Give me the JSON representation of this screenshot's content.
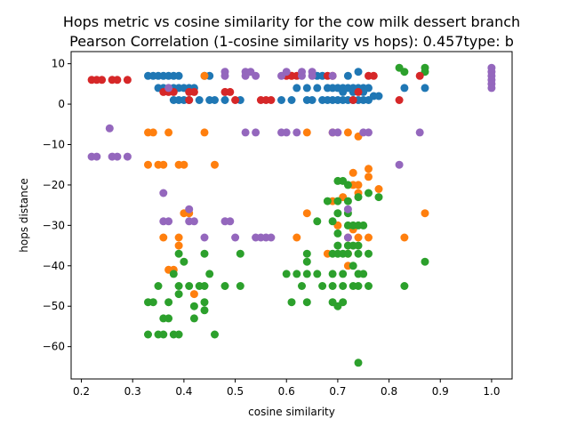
{
  "chart_data": {
    "type": "scatter",
    "title_line1": "Hops metric vs cosine similarity for the cow milk dessert branch",
    "title_line2": "Pearson Correlation (1-cosine similarity vs hops): 0.457type: b",
    "xlabel": "cosine similarity",
    "ylabel": "hops distance",
    "xlim": [
      0.18,
      1.04
    ],
    "ylim": [
      -68,
      13
    ],
    "xticks": [
      0.2,
      0.3,
      0.4,
      0.5,
      0.6,
      0.7,
      0.8,
      0.9,
      1.0
    ],
    "xtick_labels": [
      "0.2",
      "0.3",
      "0.4",
      "0.5",
      "0.6",
      "0.7",
      "0.8",
      "0.9",
      "1.0"
    ],
    "yticks": [
      10,
      0,
      -10,
      -20,
      -30,
      -40,
      -50,
      -60
    ],
    "ytick_labels": [
      "10",
      "0",
      "−10",
      "−20",
      "−30",
      "−40",
      "−50",
      "−60"
    ],
    "grid": false,
    "legend": "none",
    "series": [
      {
        "name": "blue",
        "color": "#1f77b4",
        "points": [
          [
            0.33,
            7
          ],
          [
            0.34,
            7
          ],
          [
            0.35,
            7
          ],
          [
            0.36,
            7
          ],
          [
            0.37,
            7
          ],
          [
            0.38,
            7
          ],
          [
            0.39,
            7
          ],
          [
            0.44,
            7
          ],
          [
            0.45,
            7
          ],
          [
            0.66,
            7
          ],
          [
            0.67,
            7
          ],
          [
            0.72,
            7
          ],
          [
            0.74,
            8
          ],
          [
            0.35,
            4
          ],
          [
            0.36,
            4
          ],
          [
            0.37,
            4
          ],
          [
            0.38,
            4
          ],
          [
            0.39,
            4
          ],
          [
            0.4,
            4
          ],
          [
            0.41,
            4
          ],
          [
            0.42,
            4
          ],
          [
            0.62,
            4
          ],
          [
            0.64,
            4
          ],
          [
            0.66,
            4
          ],
          [
            0.68,
            4
          ],
          [
            0.69,
            4
          ],
          [
            0.7,
            4
          ],
          [
            0.71,
            4
          ],
          [
            0.72,
            4
          ],
          [
            0.73,
            4
          ],
          [
            0.74,
            4
          ],
          [
            0.75,
            4
          ],
          [
            0.76,
            4
          ],
          [
            0.87,
            4
          ],
          [
            0.83,
            4
          ],
          [
            0.71,
            3
          ],
          [
            0.73,
            3
          ],
          [
            0.75,
            3
          ],
          [
            0.77,
            2
          ],
          [
            0.78,
            2
          ],
          [
            0.38,
            1
          ],
          [
            0.39,
            1
          ],
          [
            0.4,
            1
          ],
          [
            0.41,
            1
          ],
          [
            0.43,
            1
          ],
          [
            0.45,
            1
          ],
          [
            0.46,
            1
          ],
          [
            0.48,
            1
          ],
          [
            0.51,
            1
          ],
          [
            0.61,
            1
          ],
          [
            0.64,
            1
          ],
          [
            0.65,
            1
          ],
          [
            0.67,
            1
          ],
          [
            0.68,
            1
          ],
          [
            0.69,
            1
          ],
          [
            0.7,
            1
          ],
          [
            0.71,
            1
          ],
          [
            0.72,
            1
          ],
          [
            0.73,
            1
          ],
          [
            0.74,
            1
          ],
          [
            0.75,
            1
          ],
          [
            0.76,
            1
          ],
          [
            0.59,
            1
          ]
        ]
      },
      {
        "name": "orange",
        "color": "#ff7f0e",
        "points": [
          [
            0.44,
            7
          ],
          [
            0.61,
            7
          ],
          [
            0.33,
            -7
          ],
          [
            0.34,
            -7
          ],
          [
            0.37,
            -7
          ],
          [
            0.44,
            -7
          ],
          [
            0.64,
            -7
          ],
          [
            0.69,
            -7
          ],
          [
            0.72,
            -7
          ],
          [
            0.74,
            -8
          ],
          [
            0.33,
            -15
          ],
          [
            0.35,
            -15
          ],
          [
            0.36,
            -15
          ],
          [
            0.39,
            -15
          ],
          [
            0.4,
            -15
          ],
          [
            0.46,
            -15
          ],
          [
            0.76,
            -16
          ],
          [
            0.76,
            -18
          ],
          [
            0.73,
            -17
          ],
          [
            0.73,
            -20
          ],
          [
            0.74,
            -20
          ],
          [
            0.78,
            -21
          ],
          [
            0.74,
            -22
          ],
          [
            0.71,
            -23
          ],
          [
            0.69,
            -24
          ],
          [
            0.4,
            -27
          ],
          [
            0.41,
            -27
          ],
          [
            0.64,
            -27
          ],
          [
            0.87,
            -27
          ],
          [
            0.7,
            -30
          ],
          [
            0.73,
            -31
          ],
          [
            0.39,
            -33
          ],
          [
            0.39,
            -35
          ],
          [
            0.36,
            -33
          ],
          [
            0.62,
            -33
          ],
          [
            0.72,
            -33
          ],
          [
            0.74,
            -33
          ],
          [
            0.76,
            -33
          ],
          [
            0.83,
            -33
          ],
          [
            0.37,
            -41
          ],
          [
            0.38,
            -41
          ],
          [
            0.42,
            -47
          ],
          [
            0.72,
            -37
          ],
          [
            0.68,
            -37
          ],
          [
            0.72,
            -40
          ]
        ]
      },
      {
        "name": "green",
        "color": "#2ca02c",
        "points": [
          [
            0.82,
            9
          ],
          [
            0.87,
            9
          ],
          [
            0.83,
            8
          ],
          [
            0.87,
            8
          ],
          [
            0.7,
            -19
          ],
          [
            0.71,
            -19
          ],
          [
            0.72,
            -20
          ],
          [
            0.76,
            -22
          ],
          [
            0.78,
            -23
          ],
          [
            0.74,
            -23
          ],
          [
            0.68,
            -24
          ],
          [
            0.7,
            -24
          ],
          [
            0.72,
            -24
          ],
          [
            0.66,
            -29
          ],
          [
            0.69,
            -29
          ],
          [
            0.7,
            -27
          ],
          [
            0.72,
            -27
          ],
          [
            0.7,
            -32
          ],
          [
            0.7,
            -35
          ],
          [
            0.72,
            -30
          ],
          [
            0.73,
            -30
          ],
          [
            0.74,
            -30
          ],
          [
            0.75,
            -30
          ],
          [
            0.69,
            -37
          ],
          [
            0.7,
            -37
          ],
          [
            0.71,
            -37
          ],
          [
            0.72,
            -37
          ],
          [
            0.74,
            -37
          ],
          [
            0.76,
            -37
          ],
          [
            0.64,
            -37
          ],
          [
            0.51,
            -37
          ],
          [
            0.44,
            -37
          ],
          [
            0.72,
            -35
          ],
          [
            0.73,
            -35
          ],
          [
            0.74,
            -35
          ],
          [
            0.62,
            -42
          ],
          [
            0.64,
            -42
          ],
          [
            0.66,
            -42
          ],
          [
            0.69,
            -42
          ],
          [
            0.71,
            -42
          ],
          [
            0.74,
            -42
          ],
          [
            0.75,
            -42
          ],
          [
            0.38,
            -42
          ],
          [
            0.39,
            -37
          ],
          [
            0.4,
            -39
          ],
          [
            0.45,
            -42
          ],
          [
            0.6,
            -42
          ],
          [
            0.64,
            -39
          ],
          [
            0.73,
            -40
          ],
          [
            0.35,
            -45
          ],
          [
            0.39,
            -45
          ],
          [
            0.41,
            -45
          ],
          [
            0.43,
            -45
          ],
          [
            0.44,
            -45
          ],
          [
            0.48,
            -45
          ],
          [
            0.51,
            -45
          ],
          [
            0.63,
            -45
          ],
          [
            0.67,
            -45
          ],
          [
            0.69,
            -45
          ],
          [
            0.71,
            -45
          ],
          [
            0.73,
            -45
          ],
          [
            0.74,
            -45
          ],
          [
            0.76,
            -45
          ],
          [
            0.83,
            -45
          ],
          [
            0.87,
            -39
          ],
          [
            0.33,
            -49
          ],
          [
            0.34,
            -49
          ],
          [
            0.37,
            -49
          ],
          [
            0.39,
            -47
          ],
          [
            0.42,
            -50
          ],
          [
            0.44,
            -49
          ],
          [
            0.44,
            -51
          ],
          [
            0.61,
            -49
          ],
          [
            0.64,
            -49
          ],
          [
            0.69,
            -49
          ],
          [
            0.7,
            -50
          ],
          [
            0.71,
            -49
          ],
          [
            0.36,
            -53
          ],
          [
            0.37,
            -53
          ],
          [
            0.42,
            -53
          ],
          [
            0.33,
            -57
          ],
          [
            0.35,
            -57
          ],
          [
            0.36,
            -57
          ],
          [
            0.38,
            -57
          ],
          [
            0.39,
            -57
          ],
          [
            0.46,
            -57
          ],
          [
            0.74,
            -64
          ]
        ]
      },
      {
        "name": "red",
        "color": "#d62728",
        "points": [
          [
            0.22,
            6
          ],
          [
            0.23,
            6
          ],
          [
            0.24,
            6
          ],
          [
            0.26,
            6
          ],
          [
            0.27,
            6
          ],
          [
            0.29,
            6
          ],
          [
            0.6,
            7
          ],
          [
            0.61,
            7
          ],
          [
            0.62,
            7
          ],
          [
            0.68,
            7
          ],
          [
            0.69,
            7
          ],
          [
            0.76,
            7
          ],
          [
            0.77,
            7
          ],
          [
            0.86,
            7
          ],
          [
            0.36,
            3
          ],
          [
            0.37,
            3
          ],
          [
            0.38,
            3
          ],
          [
            0.41,
            3
          ],
          [
            0.42,
            3
          ],
          [
            0.48,
            3
          ],
          [
            0.49,
            3
          ],
          [
            0.74,
            3
          ],
          [
            0.41,
            1
          ],
          [
            0.5,
            1
          ],
          [
            0.55,
            1
          ],
          [
            0.56,
            1
          ],
          [
            0.57,
            1
          ],
          [
            0.73,
            1
          ],
          [
            0.82,
            1
          ]
        ]
      },
      {
        "name": "purple",
        "color": "#9467bd",
        "points": [
          [
            1.0,
            9
          ],
          [
            1.0,
            8
          ],
          [
            1.0,
            7
          ],
          [
            1.0,
            6
          ],
          [
            1.0,
            5
          ],
          [
            1.0,
            4
          ],
          [
            0.48,
            8
          ],
          [
            0.52,
            8
          ],
          [
            0.53,
            8
          ],
          [
            0.6,
            8
          ],
          [
            0.63,
            8
          ],
          [
            0.65,
            8
          ],
          [
            0.48,
            7
          ],
          [
            0.52,
            7
          ],
          [
            0.54,
            7
          ],
          [
            0.59,
            7
          ],
          [
            0.63,
            7
          ],
          [
            0.65,
            7
          ],
          [
            0.69,
            7
          ],
          [
            0.37,
            4
          ],
          [
            0.255,
            -6
          ],
          [
            0.22,
            -13
          ],
          [
            0.23,
            -13
          ],
          [
            0.26,
            -13
          ],
          [
            0.27,
            -13
          ],
          [
            0.29,
            -13
          ],
          [
            0.52,
            -7
          ],
          [
            0.54,
            -7
          ],
          [
            0.59,
            -7
          ],
          [
            0.6,
            -7
          ],
          [
            0.62,
            -7
          ],
          [
            0.69,
            -7
          ],
          [
            0.7,
            -7
          ],
          [
            0.75,
            -7
          ],
          [
            0.76,
            -7
          ],
          [
            0.86,
            -7
          ],
          [
            0.82,
            -15
          ],
          [
            0.36,
            -22
          ],
          [
            0.72,
            -26
          ],
          [
            0.36,
            -29
          ],
          [
            0.37,
            -29
          ],
          [
            0.41,
            -29
          ],
          [
            0.42,
            -29
          ],
          [
            0.48,
            -29
          ],
          [
            0.49,
            -29
          ],
          [
            0.41,
            -26
          ],
          [
            0.44,
            -33
          ],
          [
            0.5,
            -33
          ],
          [
            0.54,
            -33
          ],
          [
            0.55,
            -33
          ],
          [
            0.56,
            -33
          ],
          [
            0.57,
            -33
          ],
          [
            0.72,
            -33
          ]
        ]
      }
    ]
  }
}
